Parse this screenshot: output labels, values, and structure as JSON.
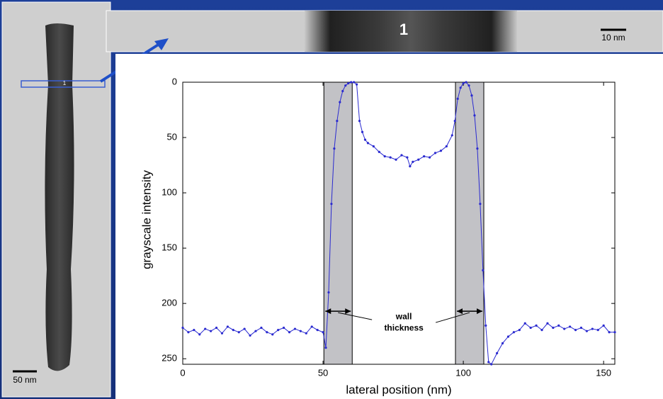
{
  "chart_data": {
    "type": "line",
    "xlabel": "lateral position (nm)",
    "ylabel": "grayscale intensity",
    "xlim": [
      0,
      154
    ],
    "ylim": [
      0,
      255
    ],
    "y_inverted": true,
    "xticks": [
      0,
      50,
      100,
      150
    ],
    "yticks": [
      0,
      50,
      100,
      150,
      200,
      250
    ],
    "x": [
      0,
      2,
      4,
      6,
      8,
      10,
      12,
      14,
      16,
      18,
      20,
      22,
      24,
      26,
      28,
      30,
      32,
      34,
      36,
      38,
      40,
      42,
      44,
      46,
      48,
      50,
      51,
      52,
      53,
      54,
      55,
      56,
      57,
      58,
      59,
      60,
      61,
      62,
      63,
      64,
      65,
      66,
      68,
      70,
      72,
      74,
      76,
      78,
      80,
      81,
      82,
      84,
      86,
      88,
      90,
      92,
      94,
      96,
      97,
      98,
      99,
      100,
      101,
      102,
      103,
      104,
      105,
      106,
      107,
      108,
      109,
      110,
      112,
      114,
      116,
      118,
      120,
      122,
      124,
      126,
      128,
      130,
      132,
      134,
      136,
      138,
      140,
      142,
      144,
      146,
      148,
      150,
      152,
      154
    ],
    "series": [
      {
        "color": "#2a2ad0",
        "values": [
          222,
          226,
          224,
          228,
          223,
          225,
          222,
          227,
          221,
          224,
          226,
          223,
          229,
          225,
          222,
          226,
          228,
          224,
          222,
          226,
          223,
          225,
          227,
          221,
          224,
          226,
          240,
          190,
          110,
          60,
          35,
          18,
          8,
          3,
          1,
          0,
          0,
          2,
          35,
          45,
          52,
          55,
          58,
          63,
          67,
          68,
          70,
          66,
          68,
          76,
          72,
          70,
          67,
          68,
          64,
          62,
          58,
          48,
          35,
          15,
          5,
          1,
          0,
          3,
          12,
          30,
          60,
          110,
          170,
          220,
          253,
          255,
          245,
          236,
          230,
          226,
          224,
          218,
          222,
          220,
          224,
          218,
          222,
          220,
          223,
          221,
          224,
          222,
          225,
          223,
          224,
          220,
          226,
          226
        ]
      }
    ],
    "regions": [
      [
        50.3,
        60.4
      ],
      [
        97.2,
        107.3
      ]
    ],
    "region_color": "#c2c2c6",
    "annotation": [
      "wall",
      "thickness"
    ],
    "annotation_y": 207
  },
  "image_labels": {
    "strip_label": "1",
    "strip_scale": "10 nm",
    "image_scale": "50 nm"
  }
}
